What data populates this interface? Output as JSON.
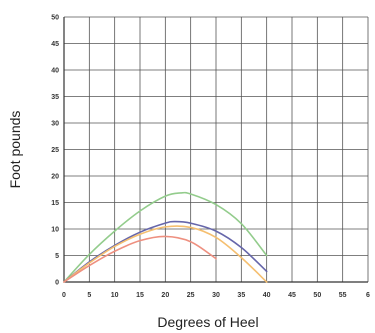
{
  "chart_data": {
    "type": "line",
    "title": "",
    "xlabel": "Degrees of Heel",
    "ylabel": "Foot pounds",
    "xlim": [
      0,
      60
    ],
    "ylim": [
      0,
      50
    ],
    "x_tick_labels": [
      "0",
      "5",
      "10",
      "15",
      "20",
      "25",
      "30",
      "35",
      "40",
      "45",
      "50",
      "55",
      "6"
    ],
    "y_tick_labels": [
      "0",
      "5",
      "10",
      "15",
      "20",
      "25",
      "30",
      "35",
      "40",
      "45",
      "50"
    ],
    "grid": true,
    "legend": "none",
    "series": [
      {
        "color": "#93cc8c",
        "x": [
          0,
          5,
          10,
          15,
          20,
          23,
          25,
          30,
          35,
          40
        ],
        "y": [
          0,
          5.2,
          9.6,
          13.4,
          16.2,
          16.8,
          16.6,
          14.6,
          11,
          5
        ]
      },
      {
        "color": "#6666aa",
        "x": [
          0,
          5,
          10,
          15,
          20,
          22,
          25,
          30,
          35,
          40
        ],
        "y": [
          0,
          3.8,
          6.9,
          9.4,
          11.1,
          11.4,
          11.1,
          9.6,
          6.5,
          2
        ]
      },
      {
        "color": "#f5bf70",
        "x": [
          0,
          5,
          10,
          15,
          20,
          25,
          30,
          35,
          40
        ],
        "y": [
          0,
          3.6,
          6.7,
          9,
          10.4,
          10.3,
          8.4,
          4.6,
          0
        ]
      },
      {
        "color": "#ee9080",
        "x": [
          0,
          5,
          10,
          15,
          20,
          25,
          30
        ],
        "y": [
          0,
          3.1,
          5.8,
          7.8,
          8.6,
          7.6,
          4.4
        ]
      }
    ]
  }
}
